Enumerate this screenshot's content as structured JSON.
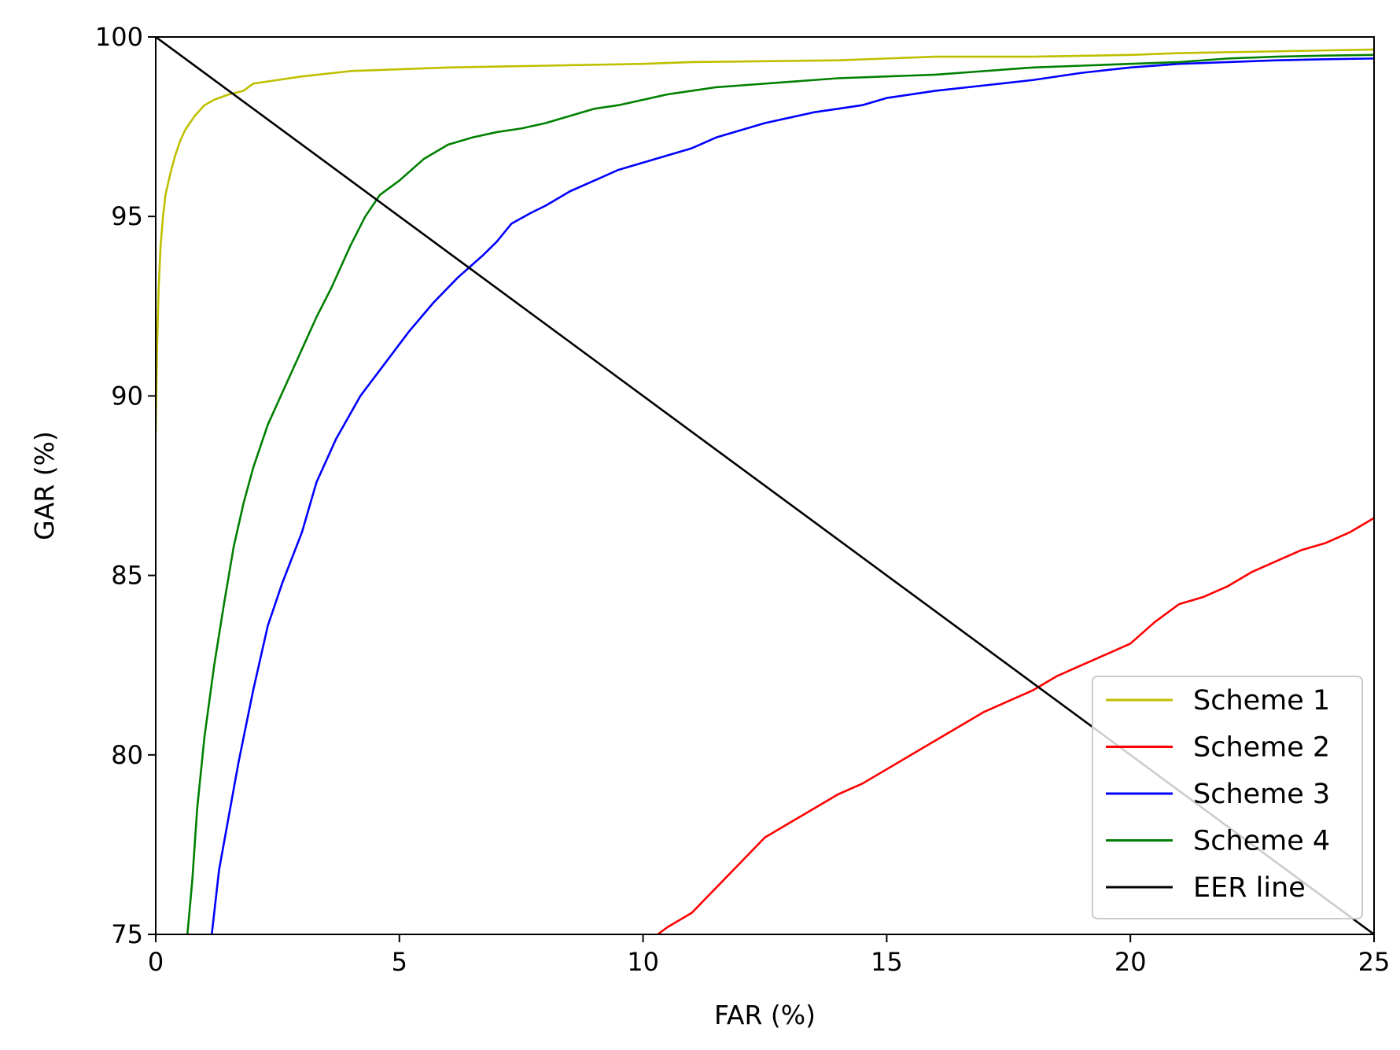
{
  "chart_data": {
    "type": "line",
    "xlabel": "FAR (%)",
    "ylabel": "GAR (%)",
    "xlim": [
      0,
      25
    ],
    "ylim": [
      75,
      100
    ],
    "xticks": [
      0,
      5,
      10,
      15,
      20,
      25
    ],
    "yticks": [
      75,
      80,
      85,
      90,
      95,
      100
    ],
    "grid": false,
    "legend_position": "lower-right",
    "series": [
      {
        "name": "Scheme 1",
        "color": "#bfbf00",
        "x": [
          0,
          0.03,
          0.06,
          0.1,
          0.15,
          0.2,
          0.3,
          0.4,
          0.5,
          0.6,
          0.7,
          0.8,
          0.9,
          1.0,
          1.2,
          1.5,
          1.8,
          2.0,
          2.5,
          3.0,
          4.0,
          5.0,
          6.0,
          8.0,
          10.0,
          11.0,
          14.0,
          15.0,
          16.0,
          18.0,
          20.0,
          21.0,
          23.0,
          25.0
        ],
        "y": [
          89.0,
          91.5,
          93.0,
          94.2,
          95.0,
          95.6,
          96.2,
          96.7,
          97.1,
          97.4,
          97.6,
          97.8,
          97.95,
          98.1,
          98.25,
          98.4,
          98.5,
          98.7,
          98.8,
          98.9,
          99.05,
          99.1,
          99.15,
          99.2,
          99.25,
          99.3,
          99.35,
          99.4,
          99.45,
          99.45,
          99.5,
          99.55,
          99.6,
          99.65
        ]
      },
      {
        "name": "Scheme 2",
        "color": "#ff0000",
        "x": [
          10.0,
          10.5,
          11.0,
          11.5,
          12.0,
          12.5,
          13.0,
          13.5,
          14.0,
          14.5,
          15.0,
          15.5,
          16.0,
          16.5,
          17.0,
          17.5,
          18.0,
          18.5,
          19.0,
          19.5,
          20.0,
          20.5,
          21.0,
          21.5,
          22.0,
          22.5,
          23.0,
          23.5,
          24.0,
          24.5,
          25.0
        ],
        "y": [
          74.7,
          75.2,
          75.6,
          76.3,
          77.0,
          77.7,
          78.1,
          78.5,
          78.9,
          79.2,
          79.6,
          80.0,
          80.4,
          80.8,
          81.2,
          81.5,
          81.8,
          82.2,
          82.5,
          82.8,
          83.1,
          83.7,
          84.2,
          84.4,
          84.7,
          85.1,
          85.4,
          85.7,
          85.9,
          86.2,
          86.6
        ]
      },
      {
        "name": "Scheme 3",
        "color": "#0000ff",
        "x": [
          1.15,
          1.3,
          1.5,
          1.7,
          2.0,
          2.3,
          2.6,
          3.0,
          3.3,
          3.7,
          4.2,
          4.7,
          5.2,
          5.7,
          6.2,
          6.7,
          7.0,
          7.3,
          7.7,
          8.0,
          8.5,
          9.0,
          9.5,
          10.0,
          10.5,
          11.0,
          11.5,
          12.0,
          12.5,
          13.0,
          13.5,
          14.0,
          14.5,
          15.0,
          16.0,
          17.0,
          18.0,
          19.0,
          20.0,
          21.0,
          22.0,
          23.0,
          24.0,
          25.0
        ],
        "y": [
          75.0,
          76.8,
          78.3,
          79.8,
          81.8,
          83.6,
          84.8,
          86.2,
          87.6,
          88.8,
          90.0,
          90.9,
          91.8,
          92.6,
          93.3,
          93.9,
          94.3,
          94.8,
          95.1,
          95.3,
          95.7,
          96.0,
          96.3,
          96.5,
          96.7,
          96.9,
          97.2,
          97.4,
          97.6,
          97.75,
          97.9,
          98.0,
          98.1,
          98.3,
          98.5,
          98.65,
          98.8,
          99.0,
          99.15,
          99.25,
          99.3,
          99.35,
          99.38,
          99.4
        ]
      },
      {
        "name": "Scheme 4",
        "color": "#008000",
        "x": [
          0.65,
          0.75,
          0.85,
          1.0,
          1.2,
          1.4,
          1.6,
          1.8,
          2.0,
          2.3,
          2.6,
          3.0,
          3.3,
          3.6,
          4.0,
          4.3,
          4.6,
          5.0,
          5.5,
          6.0,
          6.5,
          7.0,
          7.5,
          8.0,
          8.5,
          9.0,
          9.5,
          10.0,
          10.5,
          11.0,
          11.5,
          12.0,
          13.0,
          14.0,
          15.0,
          16.0,
          17.0,
          18.0,
          19.0,
          20.0,
          21.0,
          22.0,
          23.0,
          24.0,
          25.0
        ],
        "y": [
          75.0,
          76.5,
          78.5,
          80.5,
          82.5,
          84.2,
          85.8,
          87.0,
          88.0,
          89.2,
          90.1,
          91.3,
          92.2,
          93.0,
          94.2,
          95.0,
          95.6,
          96.0,
          96.6,
          97.0,
          97.2,
          97.35,
          97.45,
          97.6,
          97.8,
          98.0,
          98.1,
          98.25,
          98.4,
          98.5,
          98.6,
          98.65,
          98.75,
          98.85,
          98.9,
          98.95,
          99.05,
          99.15,
          99.2,
          99.25,
          99.3,
          99.4,
          99.45,
          99.48,
          99.5
        ]
      },
      {
        "name": "EER line",
        "color": "#000000",
        "x": [
          0,
          25
        ],
        "y": [
          100,
          75
        ]
      }
    ]
  }
}
